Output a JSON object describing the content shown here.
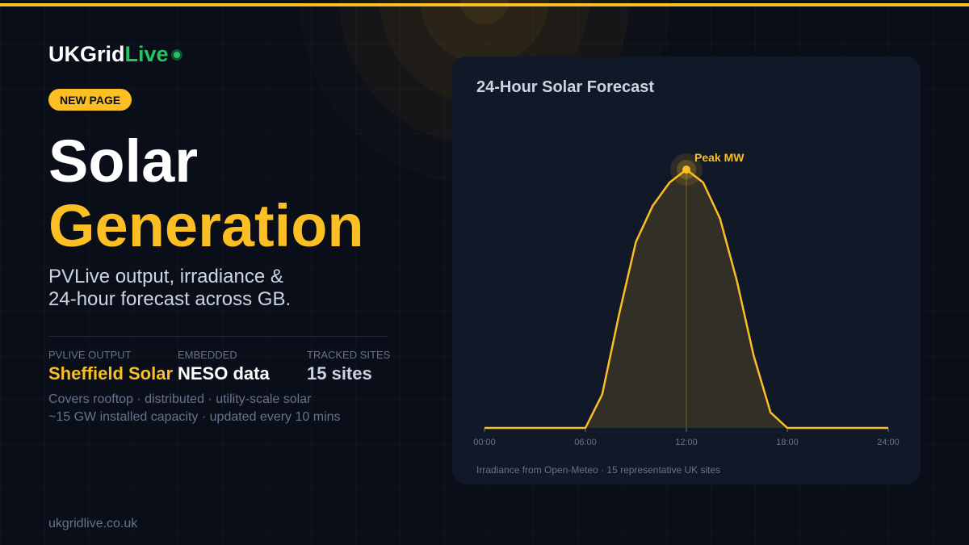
{
  "brand": {
    "name_main": "UKGrid",
    "name_accent": "Live"
  },
  "badge": "NEW PAGE",
  "hero": {
    "title_line1": "Solar",
    "title_line2": "Generation"
  },
  "subtitle": {
    "line1": "PVLive output, irradiance &",
    "line2": "24-hour forecast across GB."
  },
  "stats": [
    {
      "label": "PVLIVE OUTPUT",
      "value": "Sheffield Solar"
    },
    {
      "label": "EMBEDDED",
      "value": "NESO data"
    },
    {
      "label": "TRACKED SITES",
      "value": "15 sites"
    }
  ],
  "notes": {
    "line1": "Covers rooftop · distributed · utility-scale solar",
    "line2": "~15 GW installed capacity · updated every 10 mins"
  },
  "footer": "ukgridlive.co.uk",
  "card": {
    "title": "24-Hour Solar Forecast",
    "footnote": "Irradiance from Open-Meteo · 15 representative UK sites"
  },
  "colors": {
    "accent": "#fbbf24",
    "live": "#22c55e",
    "background": "#0a0e18",
    "card": "#111827"
  },
  "chart_data": {
    "type": "area",
    "title": "24-Hour Solar Forecast",
    "xlim": [
      0,
      24
    ],
    "ylim": [
      0,
      1
    ],
    "x_ticks": [
      "00:00",
      "06:00",
      "12:00",
      "18:00",
      "24:00"
    ],
    "x": [
      0,
      1,
      2,
      3,
      4,
      5,
      6,
      7,
      8,
      9,
      10,
      11,
      12,
      13,
      14,
      15,
      16,
      17,
      18,
      19,
      20,
      21,
      22,
      23,
      24
    ],
    "series": [
      {
        "values": [
          0,
          0,
          0,
          0,
          0,
          0,
          0,
          0.13,
          0.44,
          0.72,
          0.86,
          0.95,
          1.0,
          0.95,
          0.81,
          0.57,
          0.28,
          0.06,
          0,
          0,
          0,
          0,
          0,
          0,
          0
        ]
      }
    ],
    "peak": {
      "x": 12,
      "label": "Peak MW"
    },
    "y_axis_visible": false,
    "grid": false,
    "legend": "none"
  }
}
